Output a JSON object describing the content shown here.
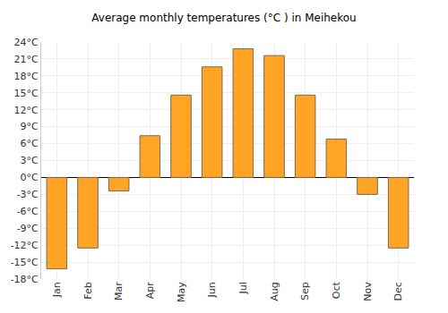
{
  "chart_data": {
    "type": "bar",
    "title": "Average monthly temperatures (°C ) in Meihekou",
    "categories": [
      "Jan",
      "Feb",
      "Mar",
      "Apr",
      "May",
      "Jun",
      "Jul",
      "Aug",
      "Sep",
      "Oct",
      "Nov",
      "Dec"
    ],
    "values": [
      -16.2,
      -12.5,
      -2.4,
      7.4,
      14.6,
      19.6,
      22.8,
      21.6,
      14.6,
      6.8,
      -3.0,
      -12.5
    ],
    "color": "#ffa424",
    "ylim": [
      -18,
      24
    ],
    "yticks": [
      {
        "value": -18,
        "label": "-18°C"
      },
      {
        "value": -15,
        "label": "-15°C"
      },
      {
        "value": -12,
        "label": "-12°C"
      },
      {
        "value": -9,
        "label": "-9°C"
      },
      {
        "value": -6,
        "label": "-6°C"
      },
      {
        "value": -3,
        "label": "-3°C"
      },
      {
        "value": 0,
        "label": "0°C"
      },
      {
        "value": 3,
        "label": "3°C"
      },
      {
        "value": 6,
        "label": "6°C"
      },
      {
        "value": 9,
        "label": "9°C"
      },
      {
        "value": 12,
        "label": "12°C"
      },
      {
        "value": 15,
        "label": "15°C"
      },
      {
        "value": 18,
        "label": "18°C"
      },
      {
        "value": 21,
        "label": "21°C"
      },
      {
        "value": 24,
        "label": "24°C"
      }
    ],
    "grid": true
  }
}
